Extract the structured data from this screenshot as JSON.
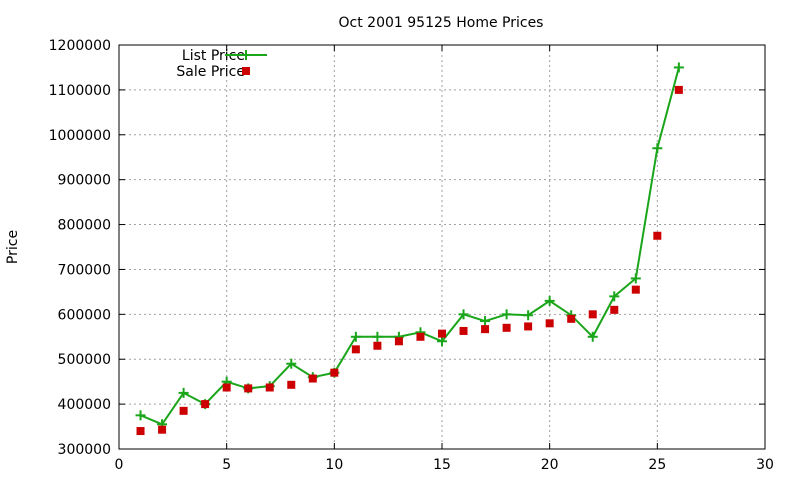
{
  "chart_data": {
    "type": "line",
    "title": "Oct 2001 95125 Home Prices",
    "xlabel": "",
    "ylabel": "Price",
    "xlim": [
      0,
      30
    ],
    "ylim": [
      300000,
      1200000
    ],
    "x_ticks": [
      0,
      5,
      10,
      15,
      20,
      25,
      30
    ],
    "y_ticks": [
      300000,
      400000,
      500000,
      600000,
      700000,
      800000,
      900000,
      1000000,
      1100000,
      1200000
    ],
    "grid": true,
    "legend_position": "top-left",
    "series": [
      {
        "name": "List Price",
        "style": "lines+points",
        "marker": "plus",
        "color": "#1aa51a",
        "x": [
          1,
          2,
          3,
          4,
          5,
          6,
          7,
          8,
          9,
          10,
          11,
          12,
          13,
          14,
          15,
          16,
          17,
          18,
          19,
          20,
          21,
          22,
          23,
          24,
          25,
          26
        ],
        "values": [
          375000,
          355000,
          425000,
          400000,
          450000,
          435000,
          440000,
          490000,
          460000,
          470000,
          550000,
          550000,
          550000,
          560000,
          540000,
          600000,
          585000,
          600000,
          598000,
          630000,
          598000,
          550000,
          640000,
          680000,
          970000,
          1150000
        ]
      },
      {
        "name": "Sale Price",
        "style": "points",
        "marker": "square",
        "color": "#cc0000",
        "x": [
          1,
          2,
          3,
          4,
          5,
          6,
          7,
          8,
          9,
          10,
          11,
          12,
          13,
          14,
          15,
          16,
          17,
          18,
          19,
          20,
          21,
          22,
          23,
          24,
          25,
          26
        ],
        "values": [
          340000,
          343000,
          385000,
          400000,
          437000,
          435000,
          437000,
          443000,
          457000,
          470000,
          522000,
          530000,
          540000,
          550000,
          557000,
          563000,
          567000,
          570000,
          573000,
          580000,
          590000,
          600000,
          610000,
          655000,
          775000,
          1100000
        ]
      }
    ]
  }
}
